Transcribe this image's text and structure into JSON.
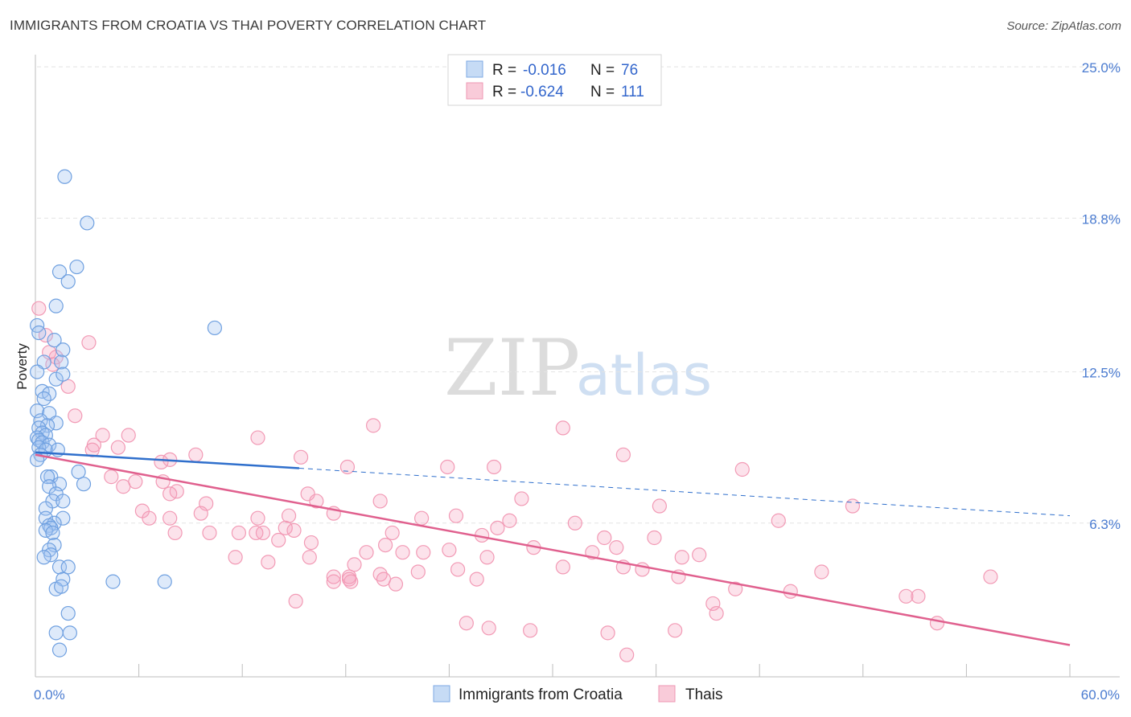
{
  "title": "IMMIGRANTS FROM CROATIA VS THAI POVERTY CORRELATION CHART",
  "source": "Source: ZipAtlas.com",
  "watermark": {
    "zip": "ZIP",
    "atlas": "atlas"
  },
  "chart_data": {
    "type": "scatter",
    "ylabel": "Poverty",
    "xlim": [
      0,
      60
    ],
    "ylim": [
      0,
      25.5
    ],
    "x_tick_labels": [
      {
        "value": 0,
        "label": "0.0%"
      },
      {
        "value": 60,
        "label": "60.0%"
      }
    ],
    "y_ticks": [
      {
        "value": 6.3,
        "label": "6.3%"
      },
      {
        "value": 12.5,
        "label": "12.5%"
      },
      {
        "value": 18.8,
        "label": "18.8%"
      },
      {
        "value": 25.0,
        "label": "25.0%"
      }
    ],
    "legend": {
      "placement": "top-center",
      "rows": [
        {
          "r_label": "R =",
          "r_value": "-0.016",
          "n_label": "N =",
          "n_value": "76"
        },
        {
          "r_label": "R =",
          "r_value": "-0.624",
          "n_label": "N =",
          "n_value": "111"
        }
      ]
    },
    "series": [
      {
        "name": "Immigrants from Croatia",
        "color": "#6fa0e0",
        "trend": {
          "color": "#2f6fcc",
          "x": [
            0,
            15.3
          ],
          "y": [
            9.2,
            8.55
          ],
          "dashed_x": [
            15.3,
            60
          ],
          "dashed_y": [
            8.55,
            6.6
          ]
        },
        "points": [
          [
            1.7,
            20.5
          ],
          [
            3.0,
            18.6
          ],
          [
            2.4,
            16.8
          ],
          [
            1.4,
            16.6
          ],
          [
            1.9,
            16.2
          ],
          [
            1.2,
            15.2
          ],
          [
            10.4,
            14.3
          ],
          [
            0.1,
            14.4
          ],
          [
            0.2,
            14.1
          ],
          [
            1.1,
            13.8
          ],
          [
            1.6,
            13.4
          ],
          [
            0.5,
            12.9
          ],
          [
            1.5,
            12.9
          ],
          [
            0.1,
            12.5
          ],
          [
            1.2,
            12.2
          ],
          [
            1.6,
            12.4
          ],
          [
            0.4,
            11.7
          ],
          [
            0.8,
            11.6
          ],
          [
            0.5,
            11.4
          ],
          [
            0.1,
            10.9
          ],
          [
            0.8,
            10.8
          ],
          [
            0.3,
            10.5
          ],
          [
            1.2,
            10.4
          ],
          [
            0.7,
            10.3
          ],
          [
            0.2,
            10.2
          ],
          [
            0.4,
            10.0
          ],
          [
            0.6,
            9.9
          ],
          [
            0.1,
            9.8
          ],
          [
            0.2,
            9.7
          ],
          [
            0.4,
            9.6
          ],
          [
            0.8,
            9.5
          ],
          [
            0.2,
            9.4
          ],
          [
            0.6,
            9.3
          ],
          [
            1.3,
            9.3
          ],
          [
            0.3,
            9.1
          ],
          [
            0.1,
            8.9
          ],
          [
            2.5,
            8.4
          ],
          [
            0.9,
            8.2
          ],
          [
            0.7,
            8.2
          ],
          [
            1.4,
            7.9
          ],
          [
            2.8,
            7.9
          ],
          [
            0.8,
            7.8
          ],
          [
            1.2,
            7.5
          ],
          [
            1.0,
            7.2
          ],
          [
            1.6,
            7.2
          ],
          [
            0.6,
            6.9
          ],
          [
            1.6,
            6.5
          ],
          [
            0.6,
            6.5
          ],
          [
            1.1,
            6.3
          ],
          [
            0.8,
            6.2
          ],
          [
            0.9,
            6.1
          ],
          [
            0.6,
            6.0
          ],
          [
            1.0,
            5.9
          ],
          [
            1.1,
            5.4
          ],
          [
            0.8,
            5.2
          ],
          [
            0.9,
            5.0
          ],
          [
            0.5,
            4.9
          ],
          [
            1.4,
            4.5
          ],
          [
            1.9,
            4.5
          ],
          [
            1.6,
            4.0
          ],
          [
            4.5,
            3.9
          ],
          [
            7.5,
            3.9
          ],
          [
            1.2,
            3.6
          ],
          [
            1.5,
            3.7
          ],
          [
            1.9,
            2.6
          ],
          [
            2.0,
            1.8
          ],
          [
            1.2,
            1.8
          ],
          [
            1.4,
            1.1
          ]
        ]
      },
      {
        "name": "Thais",
        "color": "#f29ab5",
        "trend": {
          "color": "#e0608e",
          "x": [
            0,
            60
          ],
          "y": [
            9.1,
            1.3
          ]
        },
        "points": [
          [
            0.2,
            15.1
          ],
          [
            0.6,
            14.0
          ],
          [
            3.1,
            13.7
          ],
          [
            0.8,
            13.3
          ],
          [
            1.2,
            13.1
          ],
          [
            1.0,
            12.8
          ],
          [
            1.9,
            11.9
          ],
          [
            2.3,
            10.7
          ],
          [
            19.6,
            10.3
          ],
          [
            30.6,
            10.2
          ],
          [
            3.9,
            9.9
          ],
          [
            5.4,
            9.9
          ],
          [
            12.9,
            9.8
          ],
          [
            3.4,
            9.5
          ],
          [
            4.8,
            9.4
          ],
          [
            3.3,
            9.3
          ],
          [
            9.3,
            9.1
          ],
          [
            34.1,
            9.1
          ],
          [
            15.4,
            9.0
          ],
          [
            7.8,
            8.9
          ],
          [
            7.3,
            8.8
          ],
          [
            18.1,
            8.6
          ],
          [
            23.9,
            8.6
          ],
          [
            26.6,
            8.6
          ],
          [
            41.0,
            8.5
          ],
          [
            4.4,
            8.2
          ],
          [
            7.4,
            8.0
          ],
          [
            5.8,
            8.0
          ],
          [
            5.1,
            7.8
          ],
          [
            8.2,
            7.6
          ],
          [
            7.8,
            7.5
          ],
          [
            15.8,
            7.5
          ],
          [
            20.0,
            7.2
          ],
          [
            16.3,
            7.2
          ],
          [
            28.2,
            7.3
          ],
          [
            9.9,
            7.1
          ],
          [
            36.2,
            7.0
          ],
          [
            47.4,
            7.0
          ],
          [
            6.2,
            6.8
          ],
          [
            9.6,
            6.7
          ],
          [
            17.3,
            6.7
          ],
          [
            14.7,
            6.6
          ],
          [
            24.4,
            6.6
          ],
          [
            6.6,
            6.5
          ],
          [
            12.9,
            6.5
          ],
          [
            22.4,
            6.5
          ],
          [
            7.8,
            6.5
          ],
          [
            27.5,
            6.4
          ],
          [
            31.3,
            6.3
          ],
          [
            43.1,
            6.4
          ],
          [
            26.8,
            6.1
          ],
          [
            14.5,
            6.1
          ],
          [
            13.2,
            5.9
          ],
          [
            11.8,
            5.9
          ],
          [
            8.1,
            5.9
          ],
          [
            15.0,
            6.0
          ],
          [
            10.1,
            5.9
          ],
          [
            12.8,
            5.9
          ],
          [
            20.7,
            5.9
          ],
          [
            25.9,
            5.8
          ],
          [
            33.0,
            5.7
          ],
          [
            35.9,
            5.7
          ],
          [
            14.1,
            5.6
          ],
          [
            16.0,
            5.5
          ],
          [
            20.3,
            5.4
          ],
          [
            28.9,
            5.3
          ],
          [
            33.7,
            5.3
          ],
          [
            19.2,
            5.1
          ],
          [
            21.3,
            5.1
          ],
          [
            22.5,
            5.1
          ],
          [
            24.0,
            5.2
          ],
          [
            26.2,
            4.9
          ],
          [
            32.3,
            5.1
          ],
          [
            37.5,
            4.9
          ],
          [
            38.5,
            5.0
          ],
          [
            15.9,
            4.9
          ],
          [
            11.6,
            4.9
          ],
          [
            13.5,
            4.7
          ],
          [
            18.5,
            4.6
          ],
          [
            30.6,
            4.5
          ],
          [
            34.1,
            4.5
          ],
          [
            35.2,
            4.4
          ],
          [
            24.5,
            4.4
          ],
          [
            22.2,
            4.3
          ],
          [
            20.0,
            4.2
          ],
          [
            18.2,
            4.1
          ],
          [
            17.3,
            4.1
          ],
          [
            18.2,
            4.0
          ],
          [
            17.3,
            3.9
          ],
          [
            18.3,
            3.9
          ],
          [
            20.2,
            4.0
          ],
          [
            20.9,
            3.8
          ],
          [
            25.6,
            4.0
          ],
          [
            37.3,
            4.1
          ],
          [
            40.6,
            3.6
          ],
          [
            43.8,
            3.5
          ],
          [
            50.5,
            3.3
          ],
          [
            51.2,
            3.3
          ],
          [
            55.4,
            4.1
          ],
          [
            45.6,
            4.3
          ],
          [
            15.1,
            3.1
          ],
          [
            39.3,
            3.0
          ],
          [
            39.5,
            2.6
          ],
          [
            25.0,
            2.2
          ],
          [
            26.3,
            2.0
          ],
          [
            28.7,
            1.9
          ],
          [
            33.2,
            1.8
          ],
          [
            37.1,
            1.9
          ],
          [
            52.3,
            2.2
          ],
          [
            34.3,
            0.9
          ]
        ]
      }
    ]
  }
}
